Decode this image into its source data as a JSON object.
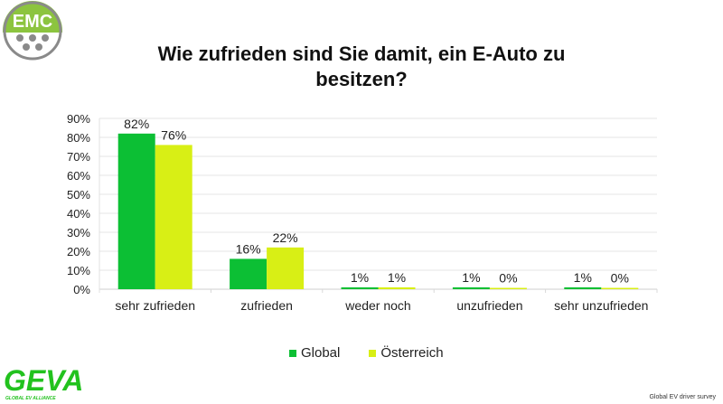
{
  "logos": {
    "top_left": "EMC",
    "bottom_left": "GEVA",
    "bottom_left_tagline": "GLOBAL EV ALLIANCE"
  },
  "source_note": "Global EV driver survey",
  "colors": {
    "global": "#0cbf34",
    "oesterreich": "#d8ef15",
    "grid": "#e4e4e4",
    "emc_green": "#8cc43f",
    "emc_grey": "#8a8a8a"
  },
  "chart_data": {
    "type": "bar",
    "title": "Wie zufrieden sind Sie damit, ein E-Auto zu besitzen?",
    "xlabel": "",
    "ylabel": "",
    "categories": [
      "sehr zufrieden",
      "zufrieden",
      "weder noch",
      "unzufrieden",
      "sehr unzufrieden"
    ],
    "series": [
      {
        "name": "Global",
        "values": [
          82,
          16,
          1,
          1,
          1
        ],
        "labels": [
          "82%",
          "16%",
          "1%",
          "1%",
          "1%"
        ]
      },
      {
        "name": "Österreich",
        "values": [
          76,
          22,
          1,
          0,
          0
        ],
        "labels": [
          "76%",
          "22%",
          "1%",
          "0%",
          "0%"
        ]
      }
    ],
    "ylim": [
      0,
      90
    ],
    "yticks": [
      "0%",
      "10%",
      "20%",
      "30%",
      "40%",
      "50%",
      "60%",
      "70%",
      "80%",
      "90%"
    ],
    "grid": true,
    "legend": "bottom"
  }
}
